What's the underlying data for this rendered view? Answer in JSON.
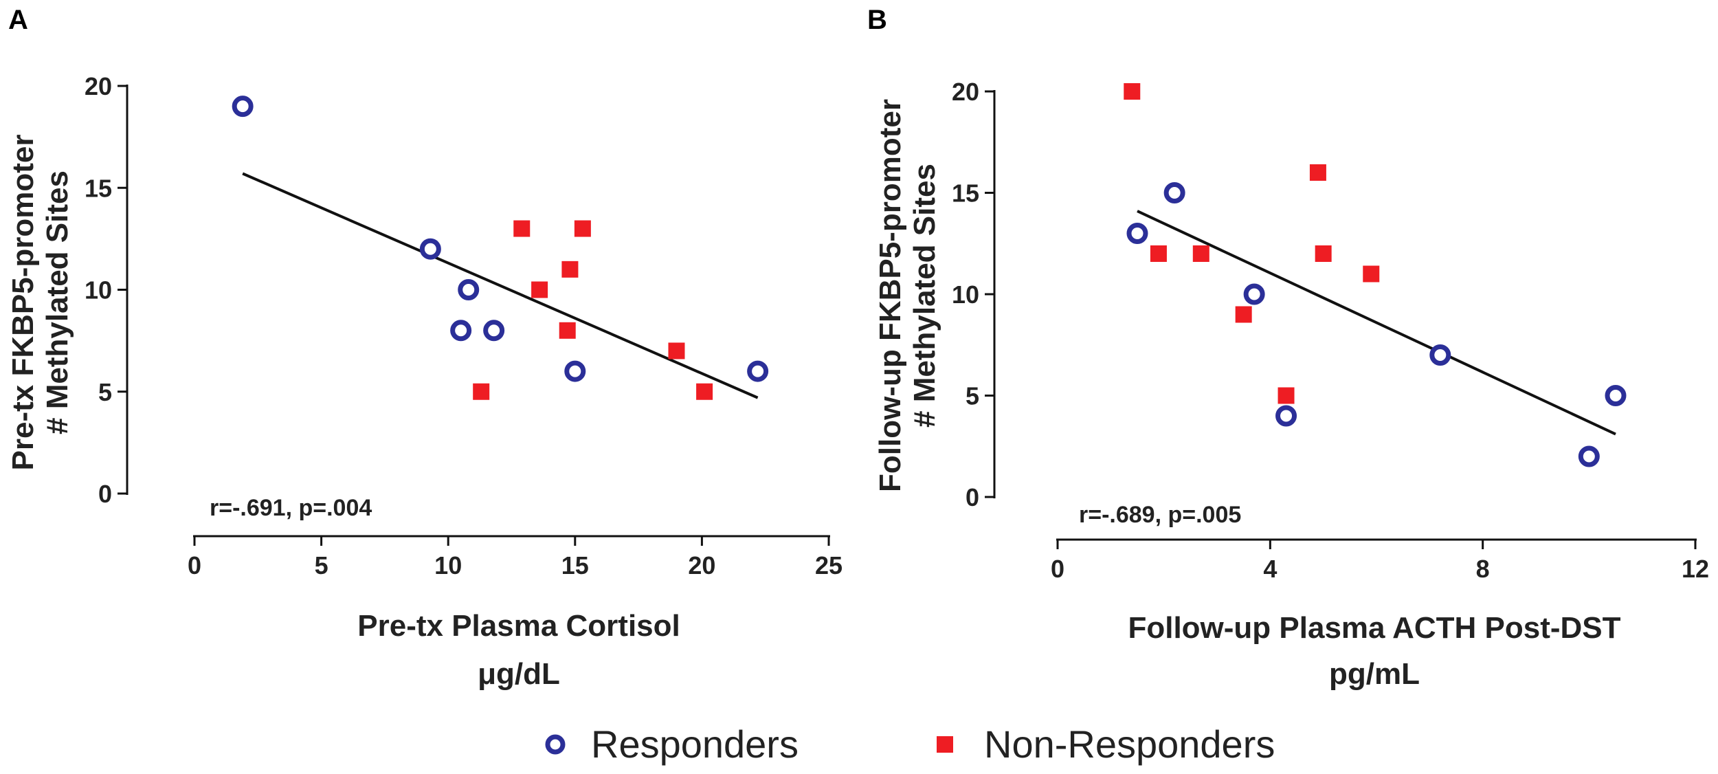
{
  "colors": {
    "responder": "#2b2f98",
    "non_responder": "#ee1d23",
    "line": "#111111",
    "axis": "#111111"
  },
  "legend": {
    "responders_label": "Responders",
    "non_responders_label": "Non-Responders"
  },
  "chart_data": [
    {
      "panel": "A",
      "type": "scatter",
      "xlabel": "Pre-tx Plasma Cortisol",
      "xunit": "μg/dL",
      "ylabel_line1": "Pre-tx FKBP5-promoter",
      "ylabel_line2": "# Methylated Sites",
      "xlim": [
        0,
        25
      ],
      "ylim": [
        0,
        20
      ],
      "xticks": [
        0,
        5,
        10,
        15,
        20,
        25
      ],
      "yticks": [
        0,
        5,
        10,
        15,
        20
      ],
      "annotation": "r=-.691, p=.004",
      "series": [
        {
          "name": "Responders",
          "x": [
            1.9,
            9.3,
            10.5,
            10.8,
            11.8,
            15.0,
            22.2
          ],
          "y": [
            19,
            12,
            8,
            10,
            8,
            6,
            6
          ]
        },
        {
          "name": "Non-Responders",
          "x": [
            11.3,
            12.9,
            13.6,
            14.7,
            14.8,
            15.3,
            19.0,
            20.1
          ],
          "y": [
            5,
            13,
            10,
            8,
            11,
            13,
            7,
            5
          ]
        }
      ],
      "regression": {
        "x": [
          1.9,
          22.2
        ],
        "y": [
          15.7,
          4.7
        ]
      }
    },
    {
      "panel": "B",
      "type": "scatter",
      "xlabel": "Follow-up Plasma ACTH Post-DST",
      "xunit": "pg/mL",
      "ylabel_line1": "Follow-up FKBP5-promoter",
      "ylabel_line2": "# Methylated Sites",
      "xlim": [
        0,
        12
      ],
      "ylim": [
        0,
        20
      ],
      "xticks": [
        0,
        4,
        8,
        12
      ],
      "yticks": [
        0,
        5,
        10,
        15,
        20
      ],
      "annotation": "r=-.689, p=.005",
      "series": [
        {
          "name": "Responders",
          "x": [
            1.5,
            2.2,
            3.7,
            4.3,
            7.2,
            10.0,
            10.5
          ],
          "y": [
            13,
            15,
            10,
            4,
            7,
            2,
            5
          ]
        },
        {
          "name": "Non-Responders",
          "x": [
            1.4,
            1.9,
            2.7,
            3.5,
            4.3,
            4.9,
            5.0,
            5.9
          ],
          "y": [
            20,
            12,
            12,
            9,
            5,
            16,
            12,
            11
          ]
        }
      ],
      "regression": {
        "x": [
          1.5,
          10.5
        ],
        "y": [
          14.1,
          3.1
        ]
      }
    }
  ]
}
